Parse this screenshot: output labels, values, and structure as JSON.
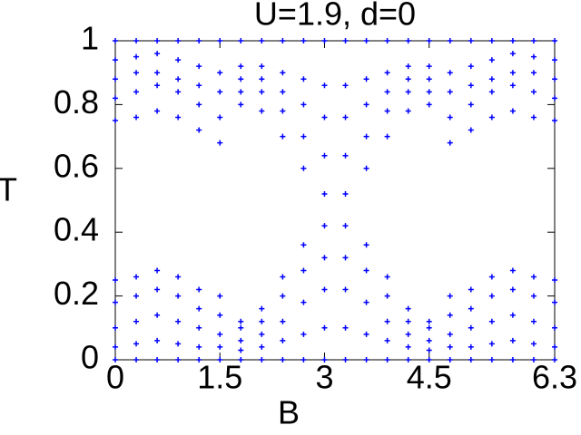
{
  "chart_data": {
    "type": "scatter",
    "title": "U=1.9, d=0",
    "xlabel": "B",
    "ylabel": "T",
    "x": [
      0,
      0.3,
      0.6,
      0.9,
      1.2,
      1.5,
      1.8,
      2.1,
      2.4,
      2.7,
      3.0,
      3.3,
      3.6,
      3.9,
      4.2,
      4.5,
      4.8,
      5.1,
      5.4,
      5.7,
      6.0,
      6.3
    ],
    "series": [
      {
        "color": "#0000ff",
        "values": [
          0.75,
          0.76,
          0.78,
          0.76,
          0.72,
          0.68,
          0.8,
          0.78,
          0.7,
          0.6,
          0.52,
          0.52,
          0.6,
          0.7,
          0.78,
          0.8,
          0.68,
          0.72,
          0.76,
          0.78,
          0.76,
          0.75
        ]
      },
      {
        "color": "#0000ff",
        "values": [
          0.82,
          0.84,
          0.86,
          0.84,
          0.8,
          0.76,
          0.84,
          0.84,
          0.78,
          0.7,
          0.64,
          0.64,
          0.7,
          0.78,
          0.84,
          0.84,
          0.76,
          0.8,
          0.84,
          0.86,
          0.84,
          0.82
        ]
      },
      {
        "color": "#0000ff",
        "values": [
          0.88,
          0.9,
          0.9,
          0.88,
          0.86,
          0.84,
          0.88,
          0.88,
          0.84,
          0.8,
          0.76,
          0.76,
          0.8,
          0.84,
          0.88,
          0.88,
          0.84,
          0.86,
          0.88,
          0.9,
          0.9,
          0.88
        ]
      },
      {
        "color": "#0000ff",
        "values": [
          0.94,
          0.95,
          0.96,
          0.94,
          0.92,
          0.9,
          0.92,
          0.92,
          0.9,
          0.88,
          0.86,
          0.86,
          0.88,
          0.9,
          0.92,
          0.92,
          0.9,
          0.92,
          0.94,
          0.96,
          0.95,
          0.94
        ]
      },
      {
        "color": "#0000ff",
        "values": [
          1,
          1,
          1,
          1,
          1,
          1,
          1,
          1,
          1,
          1,
          1,
          1,
          1,
          1,
          1,
          1,
          1,
          1,
          1,
          1,
          1,
          1
        ]
      },
      {
        "color": "#0000ff",
        "values": [
          0.25,
          0.26,
          0.28,
          0.26,
          0.22,
          0.2,
          0.12,
          0.16,
          0.26,
          0.36,
          0.42,
          0.42,
          0.36,
          0.26,
          0.16,
          0.12,
          0.2,
          0.22,
          0.26,
          0.28,
          0.26,
          0.25
        ]
      },
      {
        "color": "#0000ff",
        "values": [
          0.18,
          0.2,
          0.22,
          0.2,
          0.16,
          0.14,
          0.1,
          0.12,
          0.2,
          0.28,
          0.32,
          0.32,
          0.28,
          0.2,
          0.12,
          0.1,
          0.14,
          0.16,
          0.2,
          0.22,
          0.2,
          0.18
        ]
      },
      {
        "color": "#0000ff",
        "values": [
          0.1,
          0.12,
          0.14,
          0.12,
          0.1,
          0.08,
          0.06,
          0.08,
          0.12,
          0.18,
          0.22,
          0.22,
          0.18,
          0.12,
          0.08,
          0.06,
          0.08,
          0.1,
          0.12,
          0.14,
          0.12,
          0.1
        ]
      },
      {
        "color": "#0000ff",
        "values": [
          0.04,
          0.05,
          0.06,
          0.05,
          0.04,
          0.04,
          0.03,
          0.04,
          0.06,
          0.08,
          0.1,
          0.1,
          0.08,
          0.06,
          0.04,
          0.03,
          0.04,
          0.04,
          0.05,
          0.06,
          0.05,
          0.04
        ]
      },
      {
        "color": "#0000ff",
        "values": [
          0,
          0,
          0,
          0,
          0,
          0,
          0,
          0,
          0,
          0,
          0,
          0,
          0,
          0,
          0,
          0,
          0,
          0,
          0,
          0,
          0,
          0
        ]
      }
    ],
    "xlim": [
      0,
      6.3
    ],
    "xticks": [
      0,
      1.5,
      3,
      4.5,
      6.3
    ],
    "ylim": [
      0,
      1
    ],
    "yticks": [
      0,
      0.2,
      0.4,
      0.6,
      0.8,
      1
    ]
  }
}
